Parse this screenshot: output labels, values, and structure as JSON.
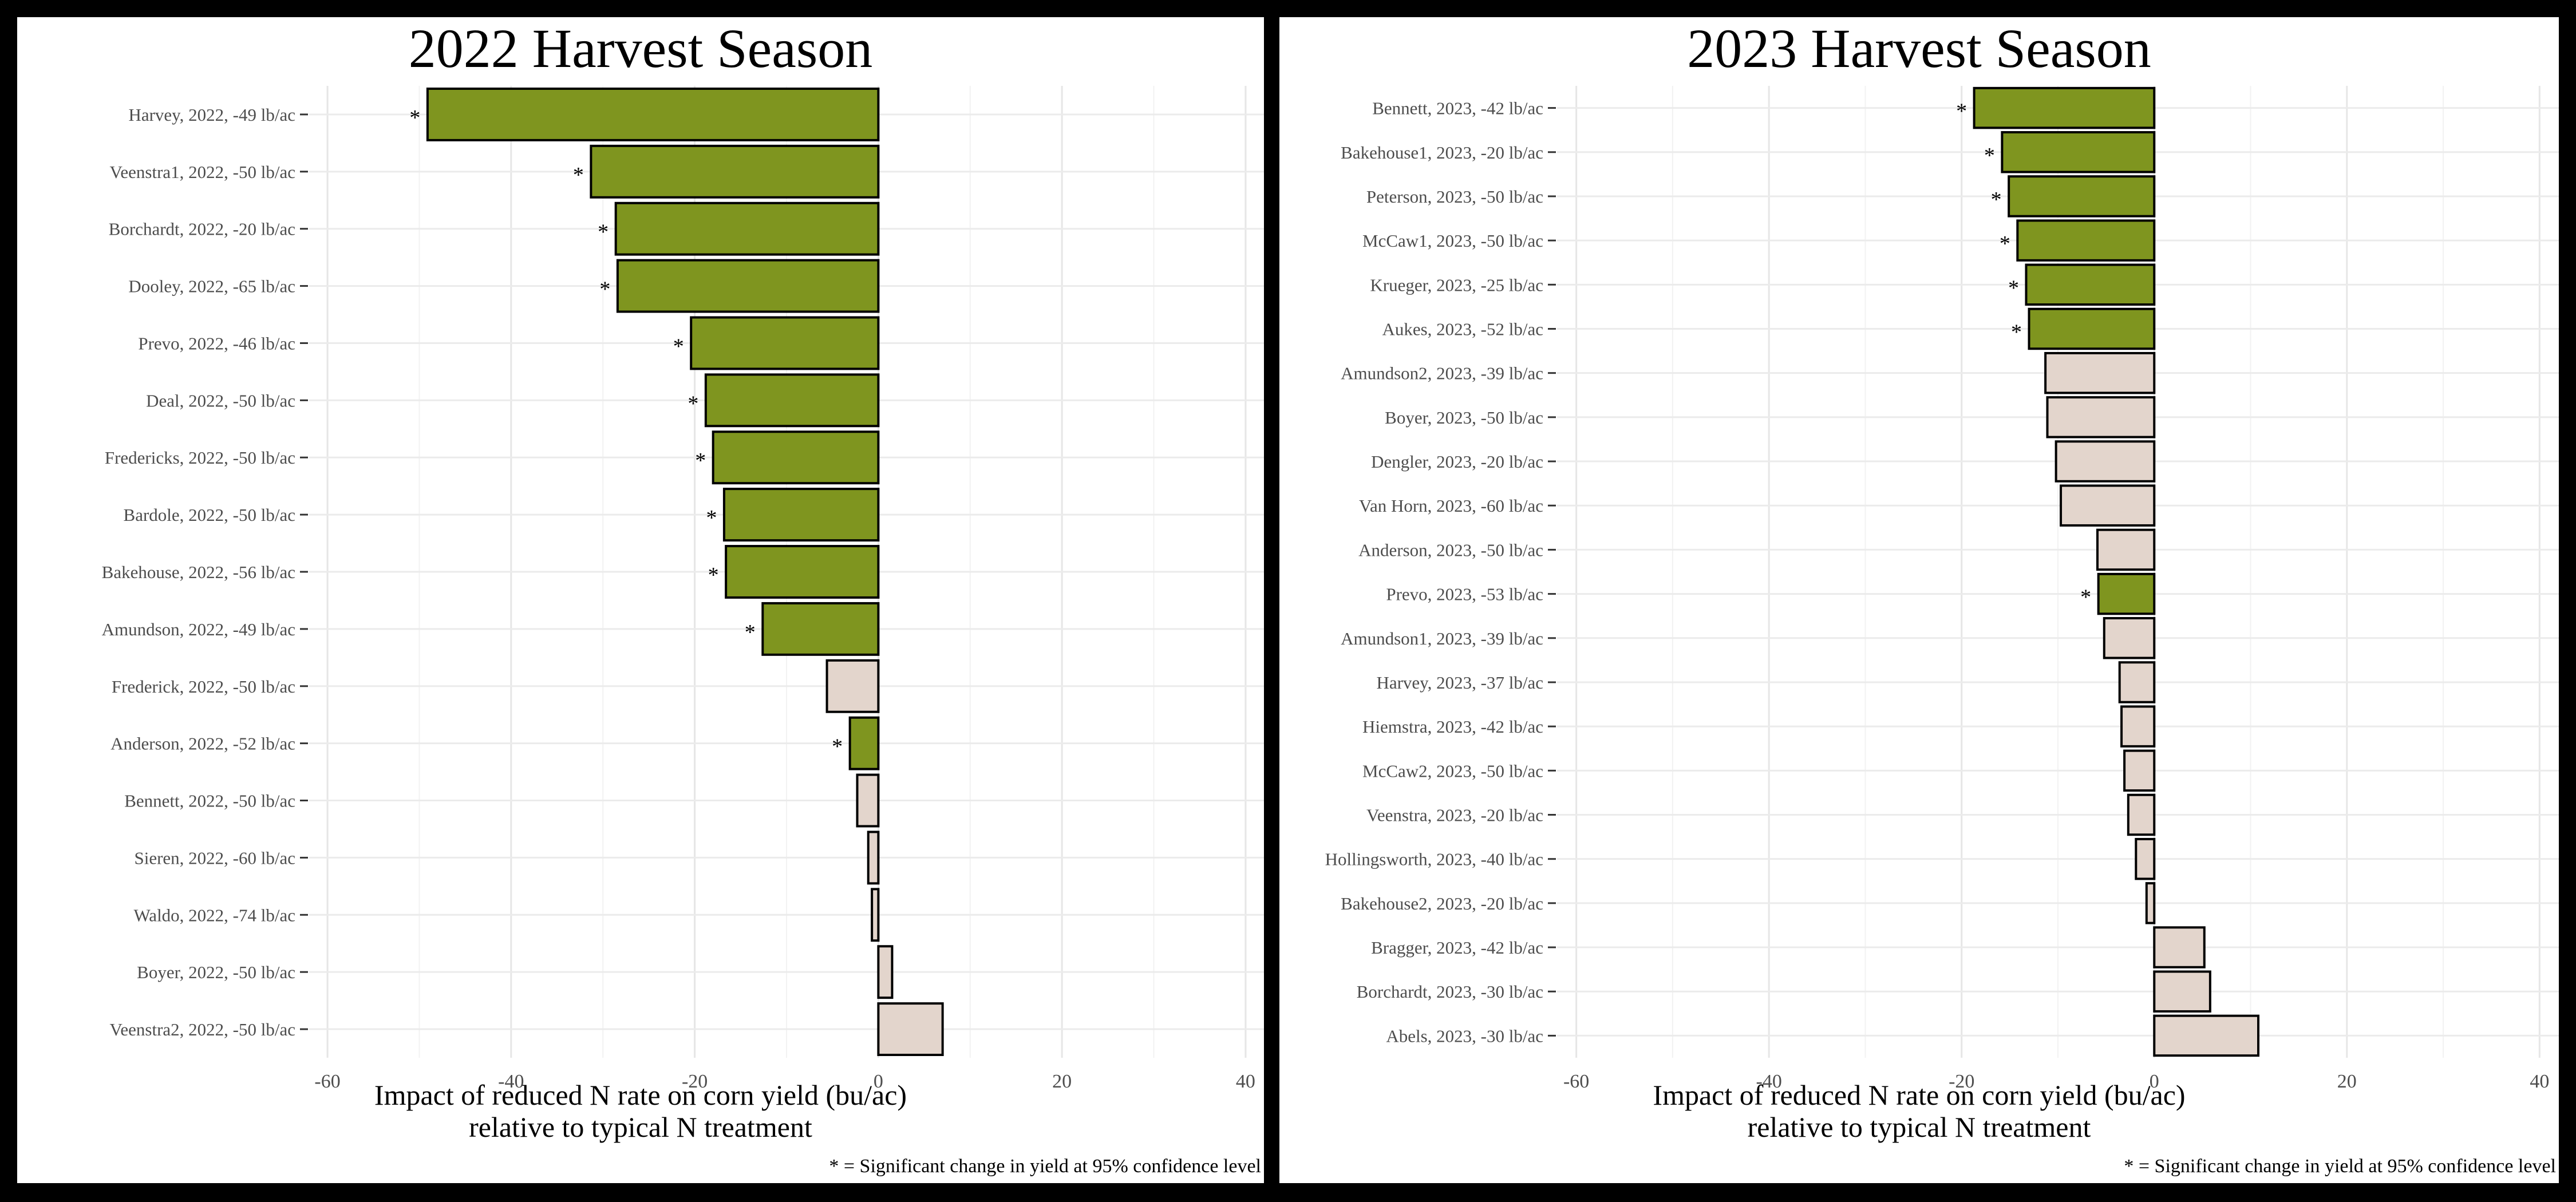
{
  "chart_data": [
    {
      "type": "bar",
      "orientation": "horizontal",
      "title": "2022 Harvest Season",
      "xlabel_line1": "Impact of reduced N rate on corn yield (bu/ac)",
      "xlabel_line2": "relative to typical N treatment",
      "note": "* = Significant change in yield at 95% confidence level",
      "xlim": [
        -62,
        42
      ],
      "xticks": [
        -60,
        -40,
        -20,
        0,
        20,
        40
      ],
      "grid": true,
      "categories": [
        "Harvey, 2022, -49 lb/ac",
        "Veenstra1, 2022, -50 lb/ac",
        "Borchardt, 2022, -20 lb/ac",
        "Dooley, 2022, -65 lb/ac",
        "Prevo, 2022, -46 lb/ac",
        "Deal, 2022, -50 lb/ac",
        "Fredericks, 2022, -50 lb/ac",
        "Bardole, 2022, -50 lb/ac",
        "Bakehouse, 2022, -56 lb/ac",
        "Amundson, 2022, -49 lb/ac",
        "Frederick, 2022, -50 lb/ac",
        "Anderson, 2022, -52 lb/ac",
        "Bennett, 2022, -50 lb/ac",
        "Sieren, 2022, -60 lb/ac",
        "Waldo, 2022, -74 lb/ac",
        "Boyer, 2022, -50 lb/ac",
        "Veenstra2, 2022, -50 lb/ac"
      ],
      "values": [
        -49.1,
        -31.3,
        -28.6,
        -28.4,
        -20.4,
        -18.8,
        -18.0,
        -16.8,
        -16.6,
        -12.6,
        -5.6,
        -3.1,
        -2.3,
        -1.1,
        -0.7,
        1.5,
        7.0
      ],
      "significant": [
        true,
        true,
        true,
        true,
        true,
        true,
        true,
        true,
        true,
        true,
        false,
        true,
        false,
        false,
        false,
        false,
        false
      ],
      "sig_marker": "*",
      "colors": {
        "significant": "#7f951f",
        "not_significant": "#e3d5cc"
      }
    },
    {
      "type": "bar",
      "orientation": "horizontal",
      "title": "2023 Harvest Season",
      "xlabel_line1": "Impact of reduced N rate on corn yield (bu/ac)",
      "xlabel_line2": "relative to typical N treatment",
      "note": "* = Significant change in yield at 95% confidence level",
      "xlim": [
        -62,
        42
      ],
      "xticks": [
        -60,
        -40,
        -20,
        0,
        20,
        40
      ],
      "grid": true,
      "categories": [
        "Bennett, 2023, -42 lb/ac",
        "Bakehouse1, 2023, -20 lb/ac",
        "Peterson, 2023, -50 lb/ac",
        "McCaw1, 2023, -50 lb/ac",
        "Krueger, 2023, -25 lb/ac",
        "Aukes, 2023, -52 lb/ac",
        "Amundson2, 2023, -39 lb/ac",
        "Boyer, 2023, -50 lb/ac",
        "Dengler, 2023, -20 lb/ac",
        "Van Horn, 2023, -60 lb/ac",
        "Anderson, 2023, -50 lb/ac",
        "Prevo, 2023, -53 lb/ac",
        "Amundson1, 2023, -39 lb/ac",
        "Harvey, 2023, -37 lb/ac",
        "Hiemstra, 2023, -42 lb/ac",
        "McCaw2, 2023, -50 lb/ac",
        "Veenstra, 2023, -20 lb/ac",
        "Hollingsworth, 2023, -40 lb/ac",
        "Bakehouse2, 2023, -20 lb/ac",
        "Bragger, 2023, -42 lb/ac",
        "Borchardt, 2023, -30 lb/ac",
        "Abels, 2023, -30 lb/ac"
      ],
      "values": [
        -18.7,
        -15.8,
        -15.1,
        -14.2,
        -13.3,
        -13.0,
        -11.3,
        -11.1,
        -10.2,
        -9.7,
        -5.9,
        -5.8,
        -5.2,
        -3.6,
        -3.4,
        -3.1,
        -2.7,
        -1.9,
        -0.8,
        5.2,
        5.8,
        10.8
      ],
      "significant": [
        true,
        true,
        true,
        true,
        true,
        true,
        false,
        false,
        false,
        false,
        false,
        true,
        false,
        false,
        false,
        false,
        false,
        false,
        false,
        false,
        false,
        false
      ],
      "sig_marker": "*",
      "colors": {
        "significant": "#7f951f",
        "not_significant": "#e3d5cc"
      }
    }
  ]
}
